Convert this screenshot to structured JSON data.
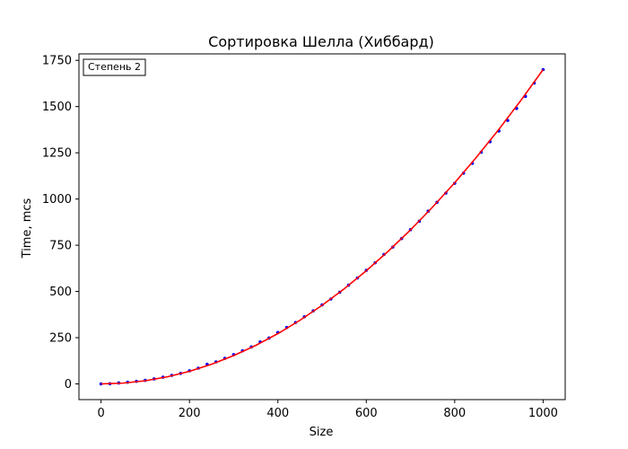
{
  "chart_data": {
    "type": "scatter",
    "title": "Сортировка Шелла (Хиббард)",
    "xlabel": "Size",
    "ylabel": "Time, mcs",
    "xlim": [
      -50,
      1050
    ],
    "ylim": [
      -85,
      1785
    ],
    "xticks": [
      0,
      200,
      400,
      600,
      800,
      1000
    ],
    "xtick_labels": [
      "0",
      "200",
      "400",
      "600",
      "800",
      "1000"
    ],
    "yticks": [
      0,
      250,
      500,
      750,
      1000,
      1250,
      1500,
      1750
    ],
    "ytick_labels": [
      "0",
      "250",
      "500",
      "750",
      "1000",
      "1250",
      "1500",
      "1750"
    ],
    "grid": false,
    "legend_placement": "top-left",
    "annotation": "Степень 2",
    "series": [
      {
        "kind": "scatter",
        "color": "#0000ff",
        "x": [
          0,
          20,
          40,
          60,
          80,
          100,
          120,
          140,
          160,
          180,
          200,
          220,
          240,
          260,
          280,
          300,
          320,
          340,
          360,
          380,
          400,
          420,
          440,
          460,
          480,
          500,
          520,
          540,
          560,
          580,
          600,
          620,
          640,
          660,
          680,
          700,
          720,
          740,
          760,
          780,
          800,
          820,
          840,
          860,
          880,
          900,
          920,
          940,
          960,
          980,
          1000
        ],
        "y": [
          0,
          1,
          5,
          9,
          14,
          19,
          27,
          36,
          46,
          57,
          71,
          85,
          106,
          119,
          138,
          158,
          179,
          200,
          227,
          248,
          278,
          305,
          332,
          363,
          395,
          427,
          459,
          496,
          534,
          573,
          614,
          655,
          700,
          740,
          786,
          834,
          880,
          934,
          982,
          1032,
          1085,
          1140,
          1193,
          1253,
          1310,
          1368,
          1425,
          1490,
          1555,
          1627,
          1700
        ]
      },
      {
        "kind": "line",
        "color": "#ff0000",
        "formula": "0.0017x^2",
        "x": [
          0,
          50,
          100,
          150,
          200,
          250,
          300,
          350,
          400,
          450,
          500,
          550,
          600,
          650,
          700,
          750,
          800,
          850,
          900,
          950,
          1000
        ],
        "y": [
          0,
          4.25,
          17,
          38.25,
          68,
          106.25,
          153,
          208.25,
          272,
          344.25,
          425,
          514.25,
          612,
          718.25,
          833,
          956.25,
          1088,
          1228.25,
          1377,
          1534.25,
          1700
        ]
      }
    ]
  }
}
